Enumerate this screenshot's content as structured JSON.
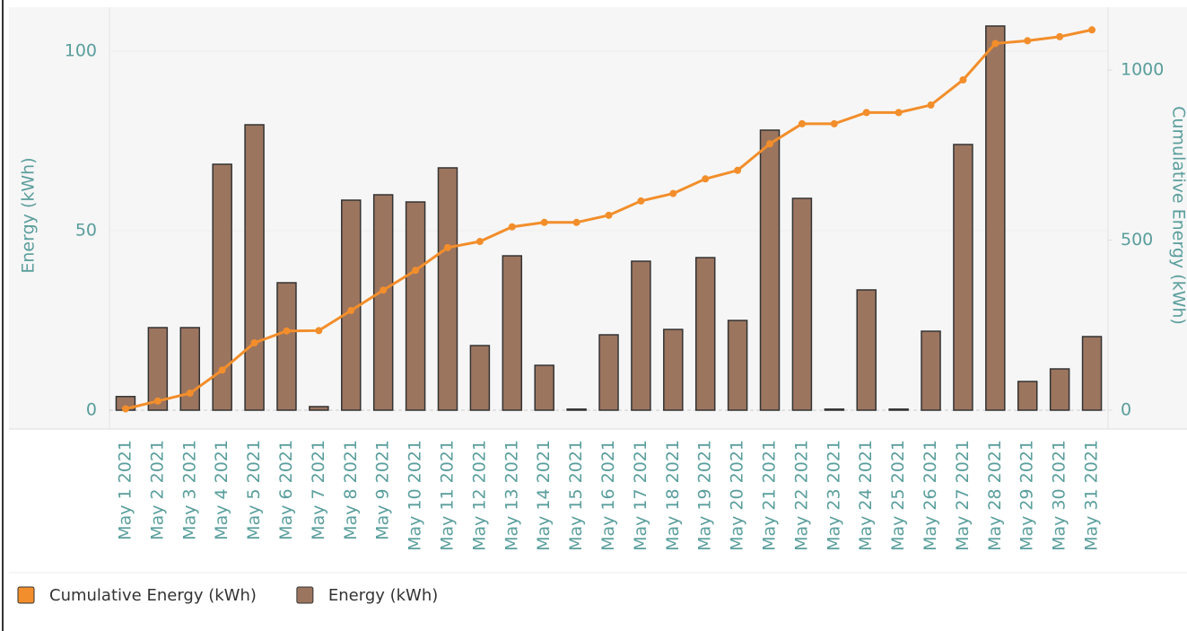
{
  "chart_data": {
    "type": "bar_line",
    "y_label": "Energy (kWh)",
    "y2_label": "Cumulative Energy (kWh)",
    "categories": [
      "May 1 2021",
      "May 2 2021",
      "May 3 2021",
      "May 4 2021",
      "May 5 2021",
      "May 6 2021",
      "May 7 2021",
      "May 8 2021",
      "May 9 2021",
      "May 10 2021",
      "May 11 2021",
      "May 12 2021",
      "May 13 2021",
      "May 14 2021",
      "May 15 2021",
      "May 16 2021",
      "May 17 2021",
      "May 18 2021",
      "May 19 2021",
      "May 20 2021",
      "May 21 2021",
      "May 22 2021",
      "May 23 2021",
      "May 24 2021",
      "May 25 2021",
      "May 26 2021",
      "May 27 2021",
      "May 28 2021",
      "May 29 2021",
      "May 30 2021",
      "May 31 2021"
    ],
    "series": [
      {
        "name": "Cumulative Energy (kWh)",
        "color": "#f28e2b",
        "axis": "y2",
        "type": "line",
        "values": [
          4,
          27,
          50,
          118,
          198,
          233,
          234,
          293,
          353,
          411,
          478,
          496,
          539,
          552,
          552,
          573,
          615,
          637,
          680,
          705,
          783,
          842,
          842,
          875,
          875,
          897,
          971,
          1078,
          1086,
          1098,
          1118
        ]
      },
      {
        "name": "Energy (kWh)",
        "color": "#9c755f",
        "type": "bar",
        "values": [
          3.8,
          23,
          23,
          68.5,
          79.5,
          35.5,
          1,
          58.5,
          60,
          58,
          67.5,
          18,
          43,
          12.5,
          0.3,
          21,
          41.5,
          22.5,
          42.5,
          25,
          78,
          59,
          0.3,
          33.5,
          0.3,
          22,
          74,
          107,
          8,
          11.5,
          20.5
        ]
      }
    ],
    "ylim": [
      -5.25,
      112.25
    ],
    "yticks": [
      0,
      50,
      100
    ],
    "y2lim": [
      -55.4,
      1184.7
    ],
    "y2ticks": [
      0,
      500,
      1000
    ],
    "legend": "bottom"
  }
}
